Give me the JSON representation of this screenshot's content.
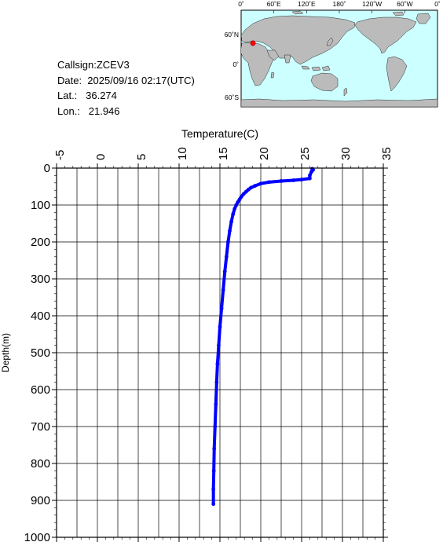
{
  "station": {
    "callsign_line": "Callsign:ZCEV3",
    "date_line": "Date:  2025/09/16 02:17(UTC)",
    "lat_line": "Lat.:   36.274",
    "lon_line": "Lon.:   21.946"
  },
  "map": {
    "top_labels": [
      "0˚",
      "60˚E",
      "120˚E",
      "180˚",
      "120˚W",
      "60˚W",
      "0˚"
    ],
    "left_labels": [
      "60˚N",
      "0˚",
      "60˚S"
    ],
    "ocean_color": "#ccffff",
    "land_color": "#bbbbbb",
    "marker_color": "#ff0000",
    "marker_lat": 36.274,
    "marker_lon": 21.946
  },
  "chart_data": {
    "type": "line",
    "title": "",
    "xlabel": "Temperature(C)",
    "ylabel": "Depth(m)",
    "x_ticks": [
      "-5",
      "0",
      "5",
      "10",
      "15",
      "20",
      "25",
      "30",
      "35"
    ],
    "y_ticks": [
      "0",
      "100",
      "200",
      "300",
      "400",
      "500",
      "600",
      "700",
      "800",
      "900",
      "1000"
    ],
    "xlim": [
      -5,
      35
    ],
    "ylim": [
      1000,
      0
    ],
    "grid": true,
    "series": [
      {
        "color": "#0000ff",
        "points": [
          [
            26.3,
            2
          ],
          [
            26.4,
            5
          ],
          [
            26.2,
            10
          ],
          [
            26.0,
            20
          ],
          [
            26.0,
            28
          ],
          [
            25.0,
            31
          ],
          [
            24.0,
            33
          ],
          [
            22.5,
            35
          ],
          [
            21.0,
            38
          ],
          [
            20.0,
            42
          ],
          [
            19.3,
            48
          ],
          [
            18.8,
            53
          ],
          [
            18.5,
            58
          ],
          [
            18.2,
            64
          ],
          [
            17.9,
            70
          ],
          [
            17.6,
            78
          ],
          [
            17.4,
            85
          ],
          [
            17.2,
            92
          ],
          [
            17.0,
            100
          ],
          [
            16.8,
            110
          ],
          [
            16.6,
            125
          ],
          [
            16.4,
            145
          ],
          [
            16.2,
            170
          ],
          [
            16.0,
            200
          ],
          [
            15.8,
            240
          ],
          [
            15.6,
            280
          ],
          [
            15.4,
            330
          ],
          [
            15.2,
            380
          ],
          [
            15.0,
            430
          ],
          [
            14.85,
            480
          ],
          [
            14.7,
            530
          ],
          [
            14.6,
            580
          ],
          [
            14.5,
            640
          ],
          [
            14.4,
            700
          ],
          [
            14.3,
            760
          ],
          [
            14.25,
            820
          ],
          [
            14.2,
            870
          ],
          [
            14.2,
            910
          ]
        ]
      }
    ]
  }
}
